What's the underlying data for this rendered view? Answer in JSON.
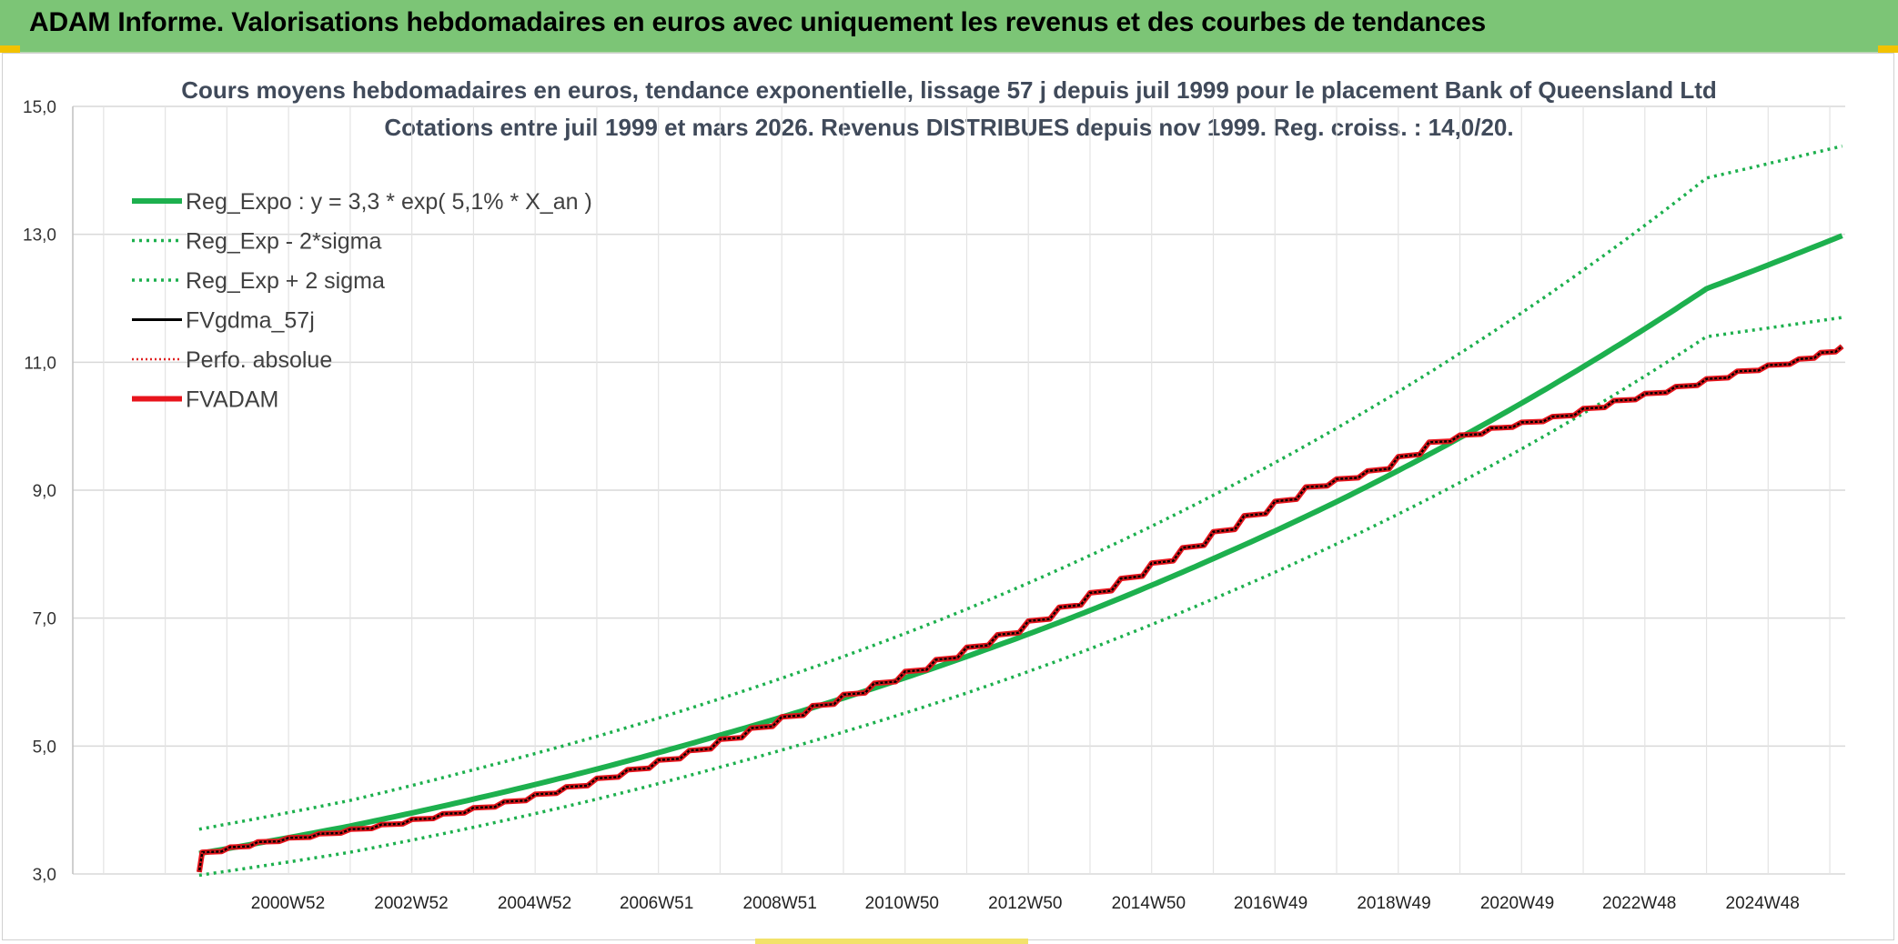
{
  "header": {
    "title": "ADAM Informe. Valorisations hebdomadaires en euros avec uniquement les revenus et des courbes de tendances"
  },
  "chart_data": {
    "type": "line",
    "title": "Cours moyens hebdomadaires en euros, tendance exponentielle, lissage 57 j depuis juil 1999 pour le placement Bank of Queensland Ltd",
    "subtitle": "Cotations entre juil 1999 et mars 2026. Revenus DISTRIBUES depuis nov 1999. Reg. croiss. : 14,0/20.",
    "xlabel": "",
    "ylabel": "",
    "ylim": [
      3.0,
      15.0
    ],
    "yticks": [
      "3,0",
      "5,0",
      "7,0",
      "9,0",
      "11,0",
      "13,0",
      "15,0"
    ],
    "xlim": [
      1997.5,
      2026.25
    ],
    "x_tick_labels": [
      {
        "label": "2000W52",
        "x": 2000.99
      },
      {
        "label": "2002W52",
        "x": 2002.99
      },
      {
        "label": "2004W52",
        "x": 2004.99
      },
      {
        "label": "2006W51",
        "x": 2006.97
      },
      {
        "label": "2008W51",
        "x": 2008.97
      },
      {
        "label": "2010W50",
        "x": 2010.95
      },
      {
        "label": "2012W50",
        "x": 2012.95
      },
      {
        "label": "2014W50",
        "x": 2014.95
      },
      {
        "label": "2016W49",
        "x": 2016.93
      },
      {
        "label": "2018W49",
        "x": 2018.93
      },
      {
        "label": "2020W49",
        "x": 2020.93
      },
      {
        "label": "2022W48",
        "x": 2022.91
      },
      {
        "label": "2024W48",
        "x": 2024.91
      }
    ],
    "grid": true,
    "legend_position": "top-left",
    "series": [
      {
        "name": "Reg_Expo : y = 3,3 * exp( 5,1% *  X_an )",
        "color": "#1db04e",
        "style": "solid-thick",
        "x": [
          1999.55,
          2002,
          2004,
          2006,
          2008,
          2010,
          2012,
          2014,
          2016,
          2018,
          2020,
          2022,
          2024,
          2026.2
        ],
        "y": [
          3.32,
          3.75,
          4.17,
          4.64,
          5.17,
          5.75,
          6.4,
          7.12,
          7.93,
          8.82,
          9.82,
          10.93,
          12.15,
          12.98
        ]
      },
      {
        "name": "Reg_Exp - 2*sigma",
        "color": "#1db04e",
        "style": "dotted",
        "x": [
          1999.55,
          2002,
          2004,
          2006,
          2008,
          2010,
          2012,
          2014,
          2016,
          2018,
          2020,
          2022,
          2024,
          2026.2
        ],
        "y": [
          2.98,
          3.34,
          3.73,
          4.17,
          4.67,
          5.22,
          5.83,
          6.52,
          7.3,
          8.16,
          9.12,
          10.2,
          11.4,
          11.7
        ]
      },
      {
        "name": "Reg_Exp + 2 sigma",
        "color": "#1db04e",
        "style": "dotted",
        "x": [
          1999.55,
          2002,
          2004,
          2006,
          2008,
          2010,
          2012,
          2014,
          2016,
          2018,
          2020,
          2022,
          2024,
          2026.2
        ],
        "y": [
          3.7,
          4.15,
          4.63,
          5.15,
          5.74,
          6.4,
          7.14,
          7.98,
          8.92,
          9.97,
          11.14,
          12.44,
          13.88,
          14.38
        ]
      },
      {
        "name": "FVgdma_57j",
        "color": "#000000",
        "style": "solid",
        "x": [
          1999.55,
          1999.6,
          2000.5,
          2001.5,
          2002.5,
          2003.5,
          2004.5,
          2005.5,
          2006.5,
          2007.5,
          2008.5,
          2009.5,
          2010.5,
          2011.5,
          2012.5,
          2013.5,
          2014.5,
          2015.5,
          2016.5,
          2017.5,
          2018.5,
          2019.5,
          2020.5,
          2021.5,
          2022.5,
          2023.5,
          2024.5,
          2025.5,
          2026.2
        ],
        "y": [
          3.03,
          3.34,
          3.5,
          3.63,
          3.77,
          3.94,
          4.13,
          4.36,
          4.63,
          4.93,
          5.28,
          5.63,
          5.98,
          6.35,
          6.74,
          7.17,
          7.62,
          8.1,
          8.6,
          9.05,
          9.3,
          9.75,
          9.97,
          10.15,
          10.4,
          10.62,
          10.86,
          11.05,
          11.25
        ]
      },
      {
        "name": "Perfo. absolue",
        "color": "#e02020",
        "style": "dotted",
        "x": [
          1999.55,
          1999.6,
          2000.5,
          2001.5,
          2002.5,
          2003.5,
          2004.5,
          2005.5,
          2006.5,
          2007.5,
          2008.5,
          2009.5,
          2010.5,
          2011.5,
          2012.5,
          2013.5,
          2014.5,
          2015.5,
          2016.5,
          2017.5,
          2018.5,
          2019.5,
          2020.5,
          2021.5,
          2022.5,
          2023.5,
          2024.5,
          2025.5,
          2026.2
        ],
        "y": [
          3.03,
          3.34,
          3.5,
          3.63,
          3.77,
          3.94,
          4.13,
          4.36,
          4.63,
          4.93,
          5.28,
          5.63,
          5.98,
          6.35,
          6.74,
          7.17,
          7.62,
          8.1,
          8.6,
          9.05,
          9.3,
          9.75,
          9.97,
          10.15,
          10.4,
          10.62,
          10.86,
          11.05,
          11.25
        ]
      },
      {
        "name": "FVADAM",
        "color": "#e8141c",
        "style": "step-thick",
        "x": [
          1999.55,
          1999.6,
          2000.5,
          2001.5,
          2002.5,
          2003.5,
          2004.5,
          2005.5,
          2006.5,
          2007.5,
          2008.5,
          2009.5,
          2010.5,
          2011.5,
          2012.5,
          2013.5,
          2014.5,
          2015.5,
          2016.5,
          2017.5,
          2018.5,
          2019.5,
          2020.5,
          2021.5,
          2022.5,
          2023.5,
          2024.5,
          2025.5,
          2026.2
        ],
        "y": [
          3.03,
          3.34,
          3.5,
          3.63,
          3.77,
          3.94,
          4.13,
          4.36,
          4.63,
          4.93,
          5.28,
          5.63,
          5.98,
          6.35,
          6.74,
          7.17,
          7.62,
          8.1,
          8.6,
          9.05,
          9.3,
          9.75,
          9.97,
          10.15,
          10.4,
          10.62,
          10.86,
          11.05,
          11.25
        ]
      }
    ]
  }
}
